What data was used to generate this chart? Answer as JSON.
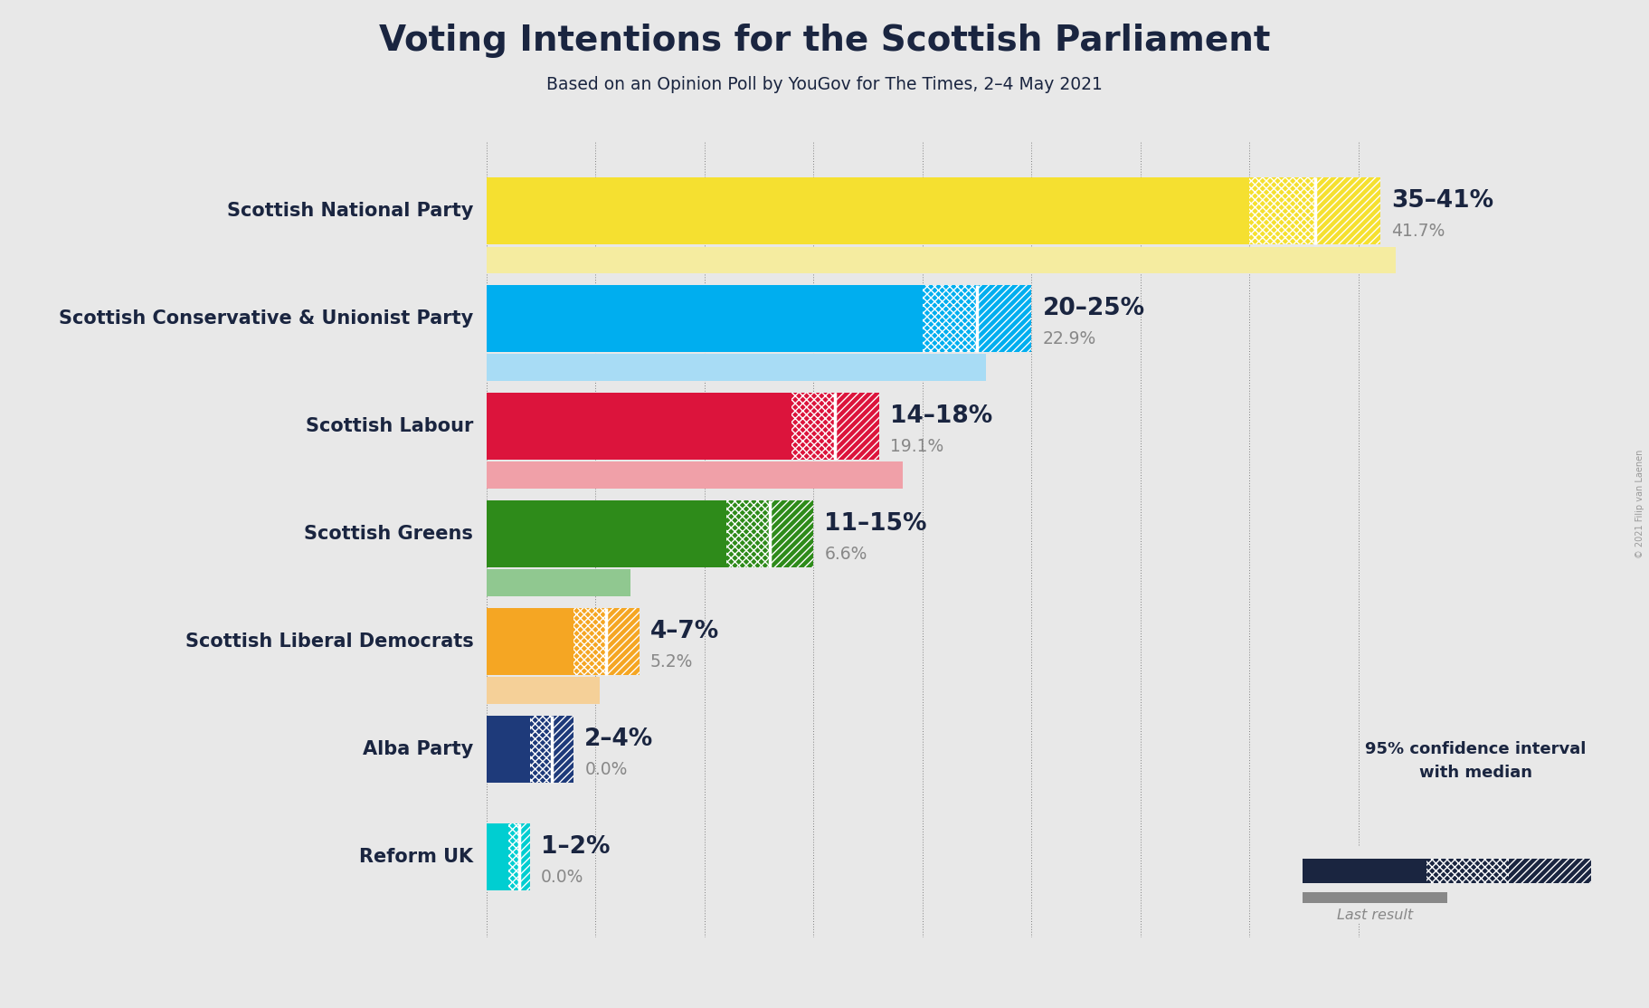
{
  "title": "Voting Intentions for the Scottish Parliament",
  "subtitle": "Based on an Opinion Poll by YouGov for The Times, 2–4 May 2021",
  "copyright": "© 2021 Filip van Laenen",
  "parties": [
    "Scottish National Party",
    "Scottish Conservative & Unionist Party",
    "Scottish Labour",
    "Scottish Greens",
    "Scottish Liberal Democrats",
    "Alba Party",
    "Reform UK"
  ],
  "colors": [
    "#F5E030",
    "#00AEEF",
    "#DC143C",
    "#2E8B1A",
    "#F5A623",
    "#1E3A7A",
    "#00CED1"
  ],
  "light_colors": [
    "#F5ECA0",
    "#A8DCF5",
    "#F0A0A8",
    "#90C890",
    "#F5D098",
    "#9090B8",
    "#90E0E8"
  ],
  "ci_low": [
    35,
    20,
    14,
    11,
    4,
    2,
    1
  ],
  "ci_high": [
    41,
    25,
    18,
    15,
    7,
    4,
    2
  ],
  "last_result": [
    41.7,
    22.9,
    19.1,
    6.6,
    5.2,
    0.0,
    0.0
  ],
  "label_text": [
    "35–41%",
    "20–25%",
    "14–18%",
    "11–15%",
    "4–7%",
    "2–4%",
    "1–2%"
  ],
  "label_sub": [
    "41.7%",
    "22.9%",
    "19.1%",
    "6.6%",
    "5.2%",
    "0.0%",
    "0.0%"
  ],
  "background_color": "#E8E8E8",
  "xlim_max": 45,
  "dark_navy": "#1A2540",
  "dotted_color": "#666666"
}
